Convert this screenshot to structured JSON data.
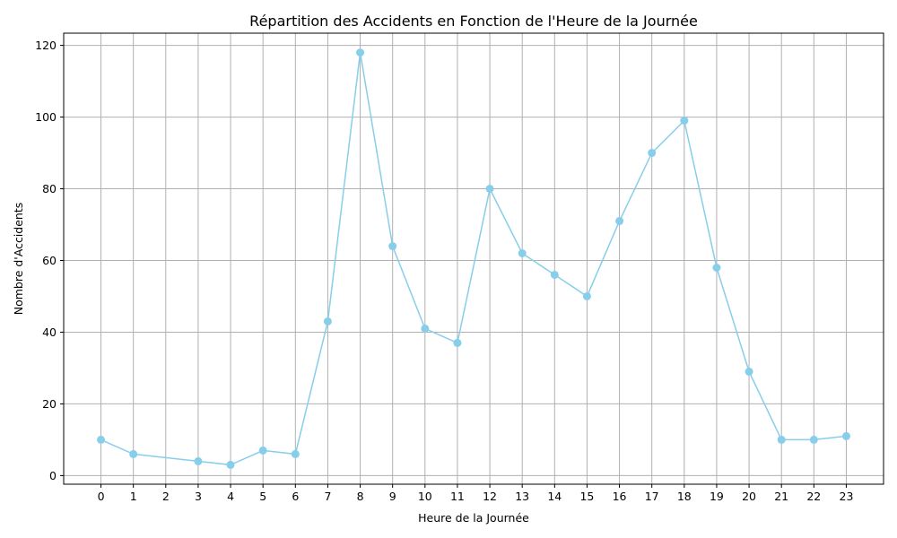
{
  "chart_data": {
    "type": "line",
    "title": "Répartition des Accidents en Fonction de l'Heure de la Journée",
    "xlabel": "Heure de la Journée",
    "ylabel": "Nombre d'Accidents",
    "x_ticks": [
      0,
      1,
      2,
      3,
      4,
      5,
      6,
      7,
      8,
      9,
      10,
      11,
      12,
      13,
      14,
      15,
      16,
      17,
      18,
      19,
      20,
      21,
      22,
      23
    ],
    "y_ticks": [
      0,
      20,
      40,
      60,
      80,
      100,
      120
    ],
    "xlim": [
      -1.15,
      24.15
    ],
    "ylim": [
      -2.4,
      123.4
    ],
    "grid": true,
    "color": "#87CEEB",
    "series": [
      {
        "x": [
          0,
          1,
          3,
          4,
          5,
          6,
          7,
          8,
          9,
          10,
          11,
          12,
          13,
          14,
          15,
          16,
          17,
          18,
          19,
          20,
          21,
          22,
          23
        ],
        "y": [
          10,
          6,
          4,
          3,
          7,
          6,
          43,
          118,
          64,
          41,
          37,
          80,
          62,
          56,
          50,
          71,
          90,
          99,
          58,
          29,
          10,
          10,
          11
        ]
      }
    ]
  }
}
